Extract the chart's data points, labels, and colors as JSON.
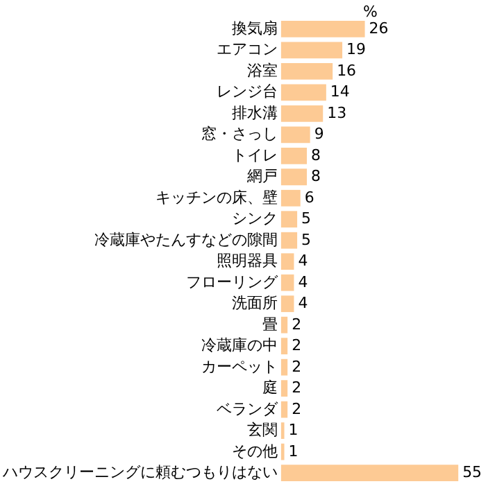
{
  "chart_data": {
    "type": "bar",
    "orientation": "horizontal",
    "xlabel": "%",
    "categories": [
      "換気扇",
      "エアコン",
      "浴室",
      "レンジ台",
      "排水溝",
      "窓・さっし",
      "トイレ",
      "網戸",
      "キッチンの床、壁",
      "シンク",
      "冷蔵庫やたんすなどの隙間",
      "照明器具",
      "フローリング",
      "洗面所",
      "畳",
      "冷蔵庫の中",
      "カーペット",
      "庭",
      "ベランダ",
      "玄関",
      "その他",
      "ハウスクリーニングに頼むつもりはない"
    ],
    "values": [
      26,
      19,
      16,
      14,
      13,
      9,
      8,
      8,
      6,
      5,
      5,
      4,
      4,
      4,
      2,
      2,
      2,
      2,
      2,
      1,
      1,
      55
    ],
    "color": "#fdca94",
    "data_labels": true,
    "grid": false,
    "tick_labels": "y"
  }
}
